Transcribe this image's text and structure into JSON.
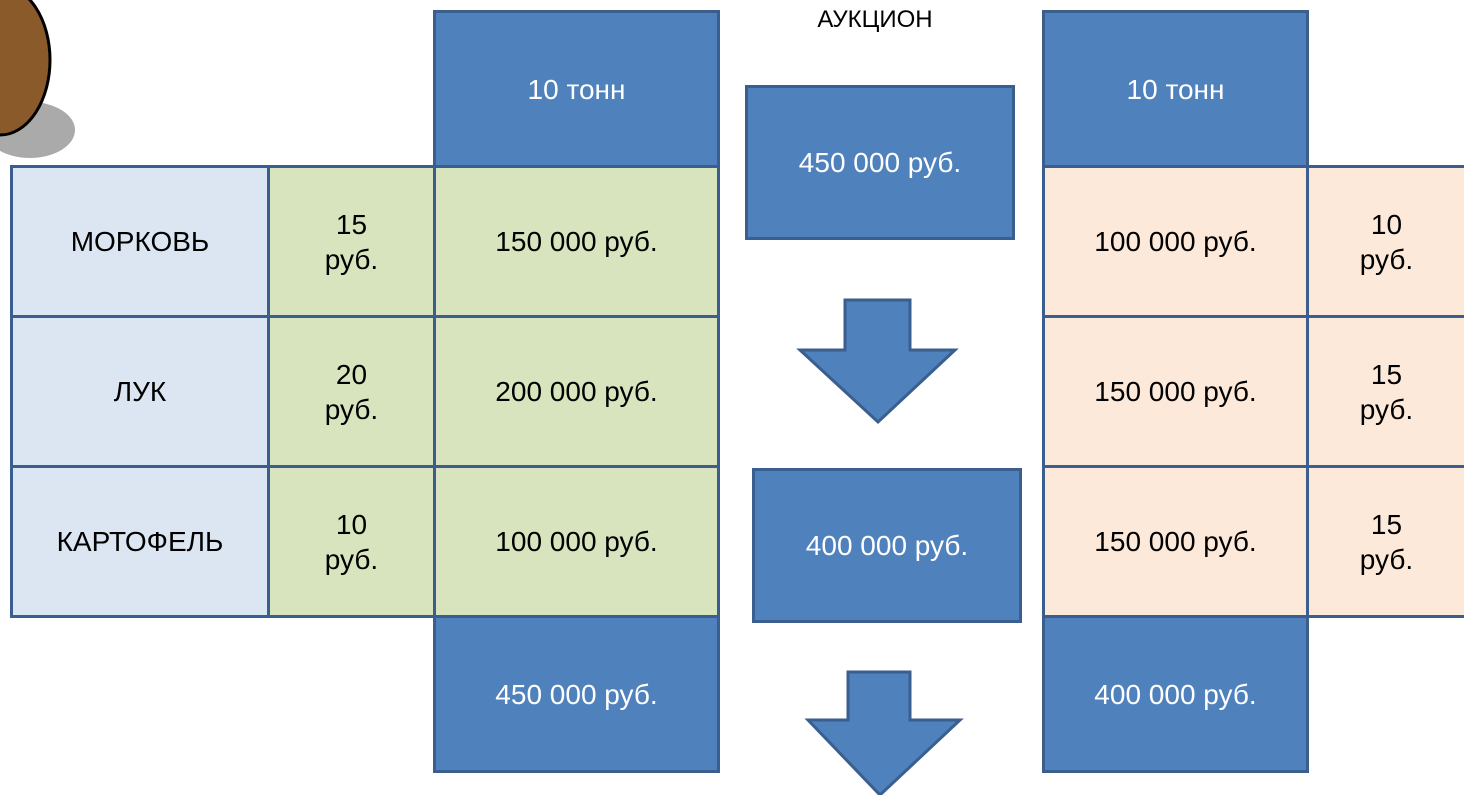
{
  "title": "АУКЦИОН",
  "left_table": {
    "header": "10 тонн",
    "rows": [
      [
        "МОРКОВЬ",
        "15 руб.",
        "150 000 руб."
      ],
      [
        "ЛУК",
        "20 руб.",
        "200 000 руб."
      ],
      [
        "КАРТОФЕЛЬ",
        "10 руб.",
        "100 000 руб."
      ]
    ],
    "total": "450 000 руб."
  },
  "middle": {
    "top_box": "450 000 руб.",
    "bottom_box": "400 000 руб."
  },
  "right_table": {
    "header": "10 тонн",
    "rows": [
      [
        "100 000 руб.",
        "10 руб."
      ],
      [
        "150 000 руб.",
        "15 руб."
      ],
      [
        "150 000 руб.",
        "15 руб."
      ]
    ],
    "total": "400 000 руб."
  }
}
